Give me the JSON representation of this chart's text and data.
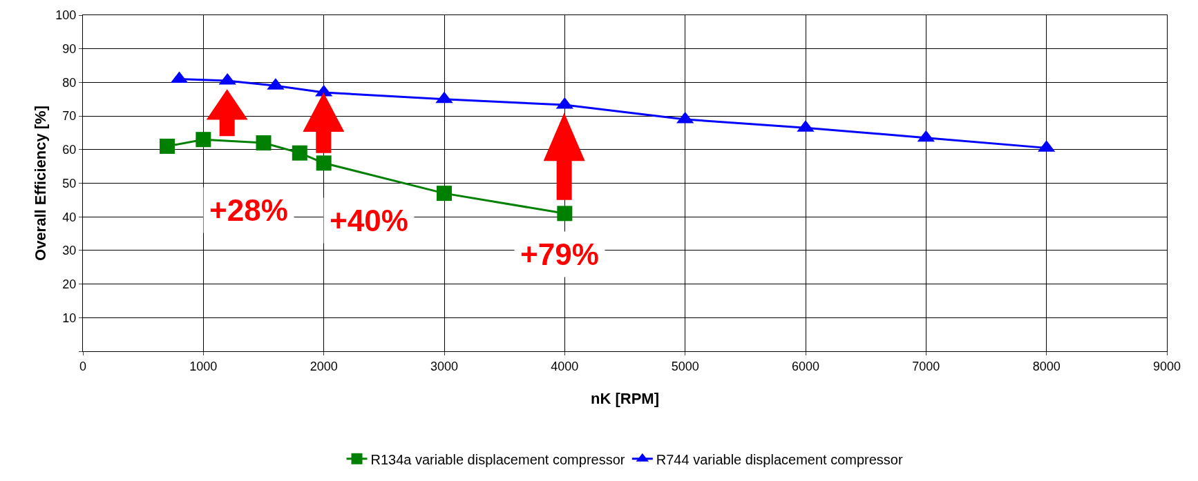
{
  "chart_data": {
    "type": "line",
    "xlabel": "nK [RPM]",
    "ylabel": "Overall Efficiency [%]",
    "xlim": [
      0,
      9000
    ],
    "xticks": [
      0,
      1000,
      2000,
      3000,
      4000,
      5000,
      6000,
      7000,
      8000,
      9000
    ],
    "ylim": [
      0,
      100
    ],
    "yticks": [
      {
        "value": 0,
        "label": null
      },
      10,
      20,
      30,
      40,
      50,
      60,
      70,
      80,
      90,
      100
    ],
    "grid": true,
    "legend": "bottom",
    "series": [
      {
        "name": "R134a variable displacement compressor",
        "color": "#008000",
        "marker": "square",
        "x": [
          700,
          1000,
          1500,
          1800,
          2000,
          3000,
          4000
        ],
        "values": [
          61,
          63,
          62,
          59,
          56,
          47,
          41
        ]
      },
      {
        "name": "R744 variable displacement compressor",
        "color": "#0000ff",
        "marker": "triangle",
        "x": [
          800,
          1200,
          1600,
          2000,
          3000,
          4000,
          5000,
          6000,
          7000,
          8000
        ],
        "values": [
          81,
          80.5,
          79,
          77,
          75,
          73.3,
          69,
          66.5,
          63.5,
          60.5
        ]
      }
    ],
    "annotations": [
      "+28%",
      "+40%",
      "+79%"
    ]
  }
}
